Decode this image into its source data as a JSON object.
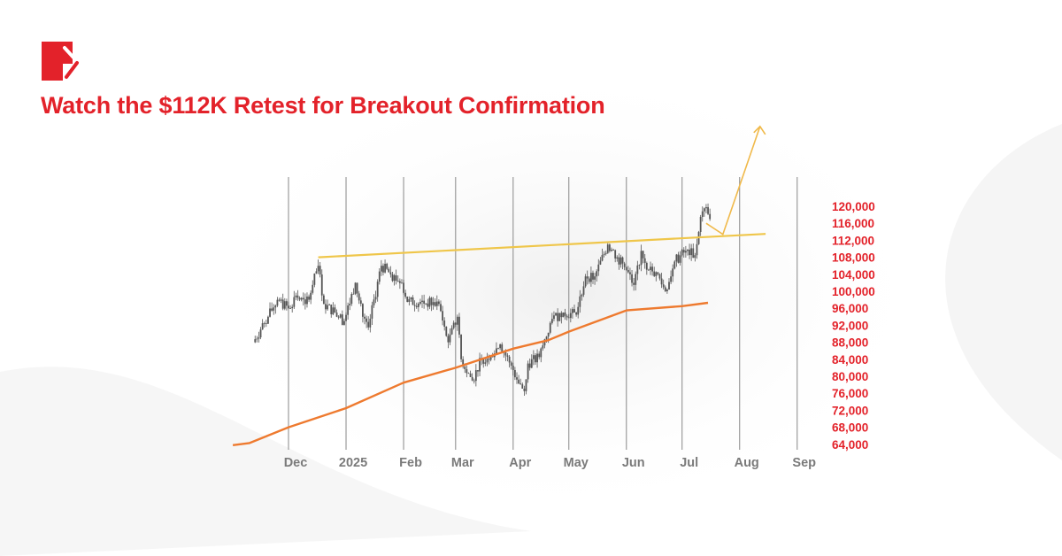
{
  "header": {
    "title": "Watch the $112K Retest for Breakout Confirmation",
    "logo": "brand-logo-red-square"
  },
  "colors": {
    "title": "#e3222a",
    "grid_horizontal": "#e53a40",
    "grid_vertical": "#8a8a8a",
    "candles": "#555555",
    "moving_average": "#ee7a2f",
    "trendline": "#efc64a",
    "arrow": "#f0b94a",
    "x_labels": "#7a7a7a"
  },
  "chart_data": {
    "type": "candlestick",
    "title": "",
    "xlabel": "",
    "ylabel": "",
    "ylim": [
      64000,
      120000
    ],
    "y_ticks": [
      120000,
      116000,
      112000,
      108000,
      104000,
      100000,
      96000,
      92000,
      88000,
      84000,
      80000,
      76000,
      72000,
      68000,
      64000
    ],
    "y_tick_labels": [
      "120,000",
      "116,000",
      "112,000",
      "108,000",
      "104,000",
      "100,000",
      "96,000",
      "92,000",
      "88,000",
      "84,000",
      "80,000",
      "76,000",
      "72,000",
      "68,000",
      "64,000"
    ],
    "y_axis_position": "right",
    "x_ticks": [
      "2024-12-01",
      "2025-01-01",
      "2025-02-01",
      "2025-03-01",
      "2025-04-01",
      "2025-05-01",
      "2025-06-01",
      "2025-07-01",
      "2025-08-01",
      "2025-09-01"
    ],
    "x_tick_labels": [
      "Dec",
      "2025",
      "Feb",
      "Mar",
      "Apr",
      "May",
      "Jun",
      "Jul",
      "Aug",
      "Sep"
    ],
    "grid": true,
    "price_closes": [
      [
        "2024-11-12",
        88000
      ],
      [
        "2024-11-16",
        91000
      ],
      [
        "2024-11-20",
        94000
      ],
      [
        "2024-11-25",
        98000
      ],
      [
        "2024-12-01",
        96000
      ],
      [
        "2024-12-05",
        99000
      ],
      [
        "2024-12-10",
        97000
      ],
      [
        "2024-12-14",
        101500
      ],
      [
        "2024-12-17",
        106000
      ],
      [
        "2024-12-20",
        97000
      ],
      [
        "2024-12-26",
        95000
      ],
      [
        "2024-12-31",
        93000
      ],
      [
        "2025-01-06",
        102000
      ],
      [
        "2025-01-10",
        94000
      ],
      [
        "2025-01-13",
        91500
      ],
      [
        "2025-01-20",
        106000
      ],
      [
        "2025-01-25",
        104000
      ],
      [
        "2025-01-31",
        102000
      ],
      [
        "2025-02-03",
        97500
      ],
      [
        "2025-02-10",
        97500
      ],
      [
        "2025-02-20",
        97000
      ],
      [
        "2025-02-25",
        88000
      ],
      [
        "2025-03-02",
        94000
      ],
      [
        "2025-03-04",
        84000
      ],
      [
        "2025-03-10",
        79000
      ],
      [
        "2025-03-15",
        84000
      ],
      [
        "2025-03-20",
        85000
      ],
      [
        "2025-03-25",
        87500
      ],
      [
        "2025-03-31",
        82500
      ],
      [
        "2025-04-07",
        76500
      ],
      [
        "2025-04-09",
        83000
      ],
      [
        "2025-04-15",
        84500
      ],
      [
        "2025-04-22",
        93500
      ],
      [
        "2025-04-28",
        95000
      ],
      [
        "2025-05-05",
        94500
      ],
      [
        "2025-05-10",
        103500
      ],
      [
        "2025-05-15",
        103500
      ],
      [
        "2025-05-22",
        111000
      ],
      [
        "2025-05-27",
        108000
      ],
      [
        "2025-06-01",
        105000
      ],
      [
        "2025-06-05",
        101500
      ],
      [
        "2025-06-09",
        109500
      ],
      [
        "2025-06-13",
        105000
      ],
      [
        "2025-06-17",
        104500
      ],
      [
        "2025-06-22",
        100000
      ],
      [
        "2025-06-27",
        107000
      ],
      [
        "2025-07-03",
        109500
      ],
      [
        "2025-07-08",
        108500
      ],
      [
        "2025-07-11",
        117500
      ],
      [
        "2025-07-14",
        119800
      ],
      [
        "2025-07-16",
        117000
      ]
    ],
    "moving_average": [
      [
        "2024-11-01",
        63800
      ],
      [
        "2024-11-10",
        64300
      ],
      [
        "2024-12-01",
        68000
      ],
      [
        "2025-01-01",
        72500
      ],
      [
        "2025-02-01",
        78500
      ],
      [
        "2025-03-01",
        82000
      ],
      [
        "2025-04-01",
        86500
      ],
      [
        "2025-04-20",
        88500
      ],
      [
        "2025-05-01",
        90500
      ],
      [
        "2025-06-01",
        95500
      ],
      [
        "2025-07-01",
        96500
      ],
      [
        "2025-07-15",
        97300
      ]
    ],
    "trendline": [
      [
        "2024-12-17",
        108000
      ],
      [
        "2025-08-15",
        113500
      ]
    ],
    "projection_arrow": [
      [
        "2025-07-14",
        116000
      ],
      [
        "2025-07-23",
        113400
      ],
      [
        "2025-08-12",
        138800
      ]
    ]
  }
}
